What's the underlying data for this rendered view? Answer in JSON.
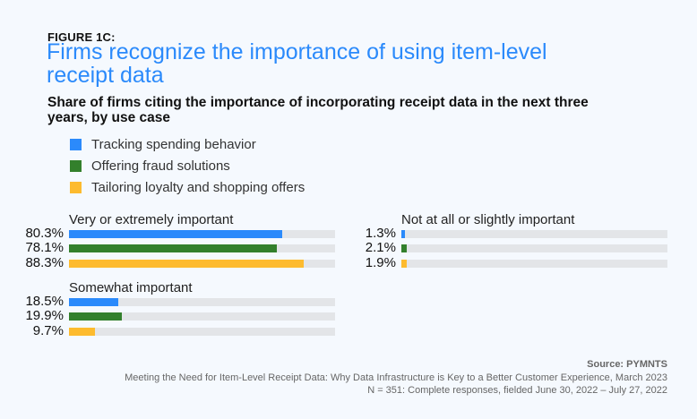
{
  "figure_label": "FIGURE 1C:",
  "title": "Firms recognize the importance of using item-level receipt data",
  "subtitle": "Share of firms citing the importance of incorporating receipt data in the next three years, by use case",
  "colors": {
    "tracking": "#2b8afb",
    "fraud": "#33802c",
    "loyalty": "#fdbb2e",
    "track": "#e3e5e8"
  },
  "chart_data": {
    "type": "bar",
    "orientation": "horizontal",
    "title": "Firms recognize the importance of using item-level receipt data",
    "subtitle": "Share of firms citing the importance of incorporating receipt data in the next three years, by use case",
    "unit": "%",
    "xlim": [
      0,
      100
    ],
    "legend": {
      "placement": "top-left",
      "entries": [
        {
          "name": "Tracking spending behavior",
          "color": "#2b8afb"
        },
        {
          "name": "Offering fraud solutions",
          "color": "#33802c"
        },
        {
          "name": "Tailoring loyalty and shopping offers",
          "color": "#fdbb2e"
        }
      ]
    },
    "groups": [
      {
        "name": "Very or extremely important",
        "values": [
          80.3,
          78.1,
          88.3
        ],
        "labels": [
          "80.3%",
          "78.1%",
          "88.3%"
        ]
      },
      {
        "name": "Somewhat important",
        "values": [
          18.5,
          19.9,
          9.7
        ],
        "labels": [
          "18.5%",
          "19.9%",
          "9.7%"
        ]
      },
      {
        "name": "Not at all or slightly important",
        "values": [
          1.3,
          2.1,
          1.9
        ],
        "labels": [
          "1.3%",
          "2.1%",
          "1.9%"
        ]
      }
    ]
  },
  "footer": {
    "source": "Source: PYMNTS",
    "report": "Meeting the Need for Item-Level Receipt Data: Why Data Infrastructure is Key to a Better Customer Experience, March 2023",
    "sample": "N = 351: Complete responses, fielded June 30, 2022 – July 27, 2022"
  }
}
